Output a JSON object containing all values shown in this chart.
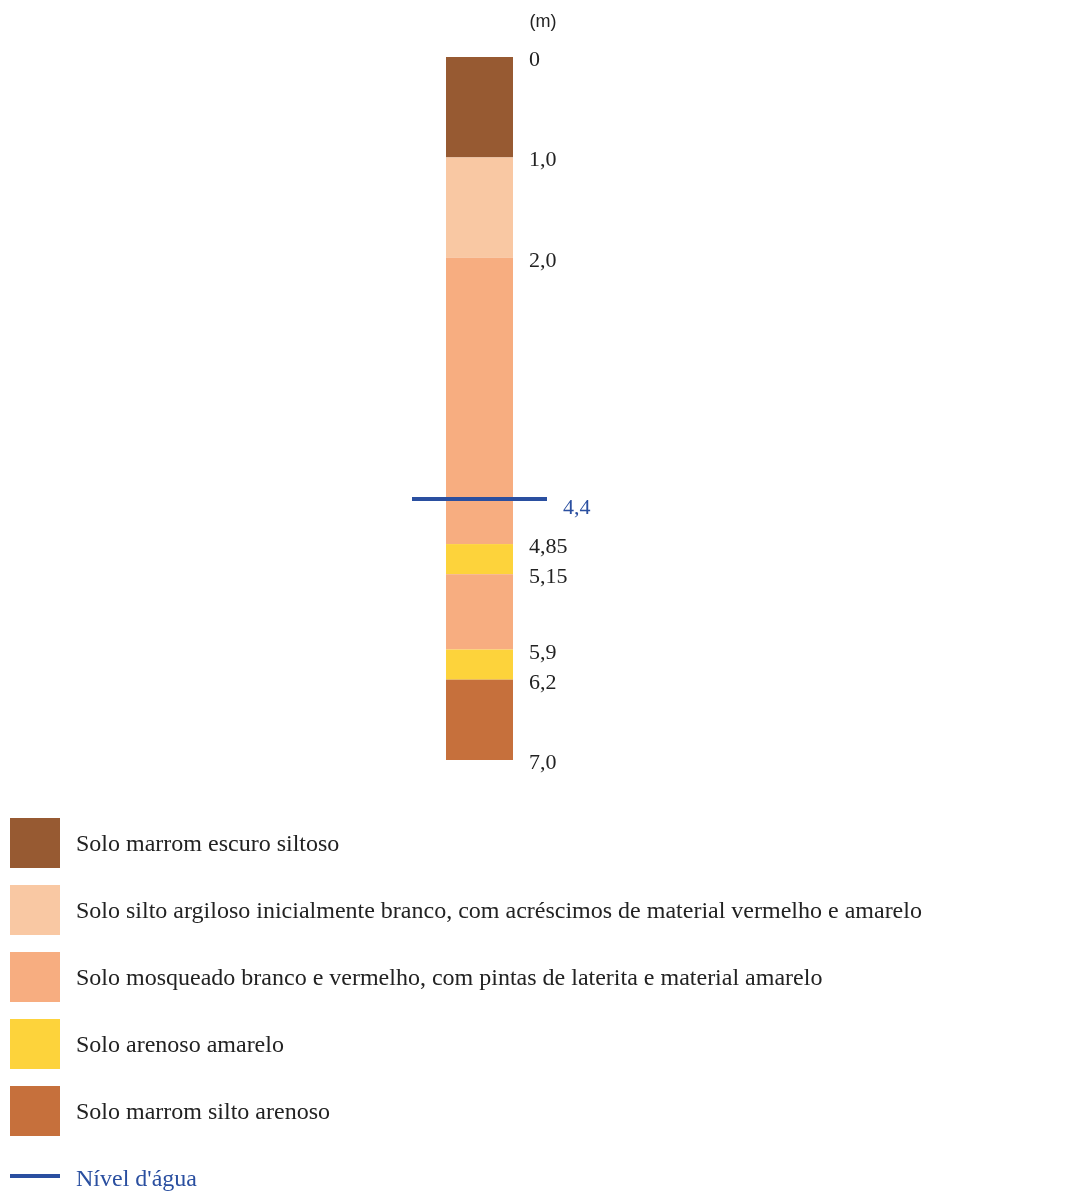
{
  "chart_data": {
    "type": "bar",
    "stacked": true,
    "ylabel": "(m)",
    "categories": [
      null
    ],
    "ylim": [
      7,
      0
    ],
    "yticks": [
      0,
      {
        "value": 1,
        "label": "1,0"
      },
      {
        "value": 2,
        "label": "2,0"
      },
      {
        "value": 4.85,
        "label": "4,85"
      },
      {
        "value": 5.15,
        "label": "5,15"
      },
      {
        "value": 5.9,
        "label": "5,9"
      },
      {
        "value": 6.2,
        "label": "6,2"
      },
      {
        "value": 7,
        "label": "7,0"
      }
    ],
    "series": [
      {
        "name": "Solo marrom escuro siltoso",
        "color": "#975a32",
        "values": [
          1.0
        ]
      },
      {
        "name": "Solo silto argiloso inicialmente branco, com acréscimos de material vermelho e amarelo",
        "color": "#f9c8a3",
        "values": [
          1.0
        ]
      },
      {
        "name": "Solo mosqueado branco e vermelho, com pintas de laterita e material amarelo",
        "color": "#f7ad80",
        "values": [
          2.85
        ]
      },
      {
        "name": "Solo arenoso amarelo",
        "color": "#fdd33b",
        "values": [
          0.3
        ]
      },
      {
        "color": "#f7ad80",
        "values": [
          0.75
        ]
      },
      {
        "color": "#fdd33b",
        "values": [
          0.3
        ]
      },
      {
        "name": "Solo marrom silto arenoso",
        "color": "#c6703c",
        "values": [
          0.8
        ]
      }
    ],
    "ref_lines": [
      {
        "axis": "y",
        "value": 4.4,
        "label": "4,4",
        "color": "#2a4fa0"
      }
    ],
    "annotations": [
      "Nível d'água"
    ],
    "legend": "bottom",
    "tick_labels": "y"
  }
}
